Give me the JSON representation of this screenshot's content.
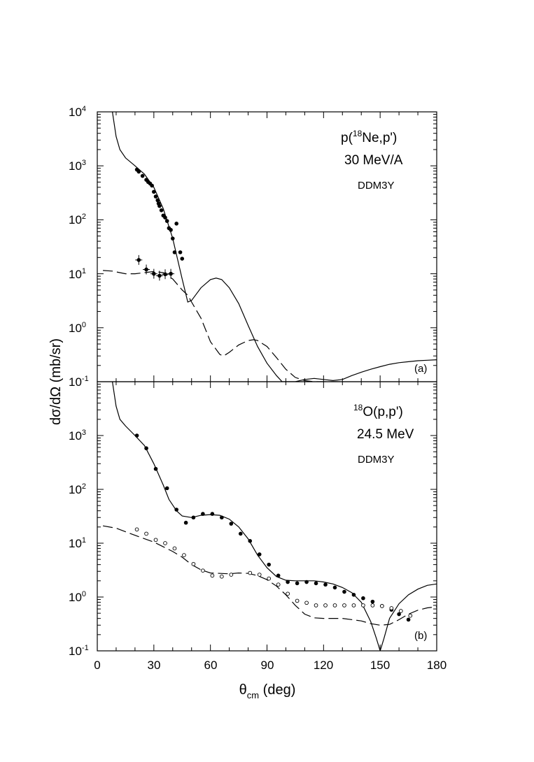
{
  "axes": {
    "ylabel": "dσ/dΩ (mb/sr)",
    "xlabel_symbol": "θ",
    "xlabel_sub": "cm",
    "xlabel_unit": " (deg)",
    "xlim": [
      0,
      180
    ],
    "xticks": [
      "0",
      "30",
      "60",
      "90",
      "120",
      "150",
      "180"
    ],
    "ytick_base": "10",
    "top_yticks": [
      "-1",
      "0",
      "1",
      "2",
      "3",
      "4"
    ],
    "bottom_yticks": [
      "-1",
      "0",
      "1",
      "2",
      "3"
    ]
  },
  "chart_data": [
    {
      "type": "line",
      "panel": "(a)",
      "title_prefix": "p(",
      "title_mass": "18",
      "title_suffix": "Ne,p')",
      "energy": "30 MeV/A",
      "model": "DDM3Y",
      "xlim": [
        0,
        180
      ],
      "ylim": [
        0.1,
        10000
      ],
      "yscale": "log",
      "series": [
        {
          "name": "calc solid",
          "style": "solid",
          "x": [
            8,
            10,
            12,
            15,
            20,
            25,
            30,
            35,
            40,
            45,
            48,
            50,
            55,
            60,
            63,
            66,
            70,
            75,
            80,
            85,
            90,
            95,
            98,
            105,
            110,
            115,
            120,
            125,
            130,
            135,
            140,
            145,
            150,
            155,
            160,
            165,
            170,
            175,
            180
          ],
          "y": [
            10000,
            3500,
            2000,
            1400,
            1000,
            700,
            400,
            160,
            45,
            8,
            3,
            3.2,
            5.5,
            7.8,
            8.3,
            7.8,
            5.5,
            2.8,
            1.1,
            0.45,
            0.22,
            0.13,
            0.1,
            0.1,
            0.11,
            0.115,
            0.11,
            0.105,
            0.11,
            0.13,
            0.15,
            0.17,
            0.19,
            0.21,
            0.225,
            0.235,
            0.245,
            0.25,
            0.255
          ]
        },
        {
          "name": "calc dashed",
          "style": "dashed",
          "x": [
            3,
            8,
            12,
            15,
            20,
            25,
            30,
            35,
            40,
            45,
            48,
            50,
            55,
            60,
            65,
            67,
            70,
            75,
            80,
            83,
            85,
            90,
            95,
            100,
            105,
            110,
            115,
            120,
            125,
            130
          ],
          "y": [
            11.5,
            11.2,
            10.5,
            10,
            10,
            10.5,
            11,
            10.5,
            8,
            5,
            4,
            3,
            1.5,
            0.55,
            0.32,
            0.3,
            0.35,
            0.48,
            0.58,
            0.6,
            0.58,
            0.45,
            0.28,
            0.17,
            0.12,
            0.105,
            0.1,
            0.1,
            0.1,
            0.1
          ]
        }
      ],
      "data_points": {
        "elastic": {
          "x": [
            21,
            22,
            24,
            26,
            27,
            28,
            29,
            30,
            31,
            32,
            32.5,
            33,
            34,
            35,
            36,
            37,
            38,
            39,
            40,
            41,
            42,
            44,
            45
          ],
          "y": [
            850,
            780,
            650,
            550,
            500,
            470,
            430,
            330,
            270,
            230,
            200,
            180,
            150,
            120,
            110,
            95,
            70,
            65,
            45,
            25,
            85,
            25,
            19
          ]
        },
        "inelastic": {
          "x": [
            22,
            26,
            30,
            33,
            36,
            39
          ],
          "y": [
            18,
            12,
            10,
            9.2,
            9.8,
            10
          ]
        }
      }
    },
    {
      "type": "line",
      "panel": "(b)",
      "title_mass": "18",
      "title_suffix": "O(p,p')",
      "energy": "24.5 MeV",
      "model": "DDM3Y",
      "xlim": [
        0,
        180
      ],
      "ylim": [
        0.1,
        10000
      ],
      "yscale": "log",
      "series": [
        {
          "name": "calc solid",
          "style": "solid",
          "x": [
            8,
            10,
            12,
            15,
            20,
            25,
            30,
            35,
            38,
            42,
            45,
            50,
            55,
            60,
            65,
            70,
            75,
            80,
            85,
            90,
            95,
            100,
            105,
            110,
            115,
            120,
            125,
            130,
            135,
            140,
            145,
            148,
            150,
            152,
            155,
            160,
            165,
            170,
            175,
            180
          ],
          "y": [
            10000,
            3500,
            2000,
            1500,
            1000,
            650,
            300,
            120,
            65,
            40,
            32,
            30,
            33,
            34,
            33,
            28,
            20,
            12,
            6,
            3.5,
            2.4,
            2.05,
            2.0,
            2.0,
            2.0,
            1.9,
            1.75,
            1.5,
            1.2,
            0.8,
            0.35,
            0.17,
            0.1,
            0.17,
            0.4,
            0.75,
            1.1,
            1.4,
            1.65,
            1.75
          ]
        },
        {
          "name": "calc dashed",
          "style": "dashed",
          "x": [
            3,
            10,
            20,
            30,
            40,
            45,
            50,
            55,
            60,
            70,
            75,
            80,
            85,
            90,
            95,
            100,
            105,
            110,
            115,
            120,
            130,
            140,
            145,
            150,
            155,
            160,
            165,
            170,
            175,
            180
          ],
          "y": [
            21,
            19,
            14,
            10.5,
            7,
            5.5,
            4,
            3.2,
            2.8,
            2.7,
            2.8,
            2.75,
            2.5,
            2.1,
            1.6,
            1.1,
            0.7,
            0.48,
            0.41,
            0.4,
            0.4,
            0.36,
            0.32,
            0.3,
            0.31,
            0.38,
            0.48,
            0.57,
            0.63,
            0.66
          ]
        }
      ],
      "data_points": {
        "elastic": {
          "x": [
            21,
            26,
            31,
            37,
            42,
            47,
            51,
            56,
            61,
            66,
            71,
            76,
            81,
            86,
            91,
            96,
            101,
            106,
            111,
            116,
            121,
            126,
            131,
            136,
            141,
            146,
            151,
            156,
            160,
            165
          ],
          "y": [
            1000,
            580,
            240,
            105,
            42,
            24,
            30,
            35,
            35,
            30,
            23,
            15,
            11,
            6.2,
            4,
            2.5,
            1.9,
            1.8,
            1.9,
            1.8,
            1.7,
            1.5,
            1.25,
            1.1,
            0.95,
            0.82,
            0.68,
            0.58,
            0.48,
            0.38
          ]
        },
        "inelastic": {
          "x": [
            21,
            26,
            31,
            36,
            41,
            46,
            51,
            56,
            61,
            66,
            71,
            81,
            86,
            91,
            96,
            101,
            106,
            111,
            116,
            121,
            126,
            131,
            136,
            141,
            146,
            151,
            156,
            161,
            166
          ],
          "y": [
            18,
            15,
            11.5,
            10,
            8,
            6,
            4.1,
            3.1,
            2.5,
            2.4,
            2.6,
            2.8,
            2.6,
            2.2,
            1.7,
            1.15,
            0.85,
            0.78,
            0.7,
            0.7,
            0.7,
            0.7,
            0.7,
            0.7,
            0.7,
            0.68,
            0.62,
            0.55,
            0.45
          ]
        }
      }
    }
  ]
}
